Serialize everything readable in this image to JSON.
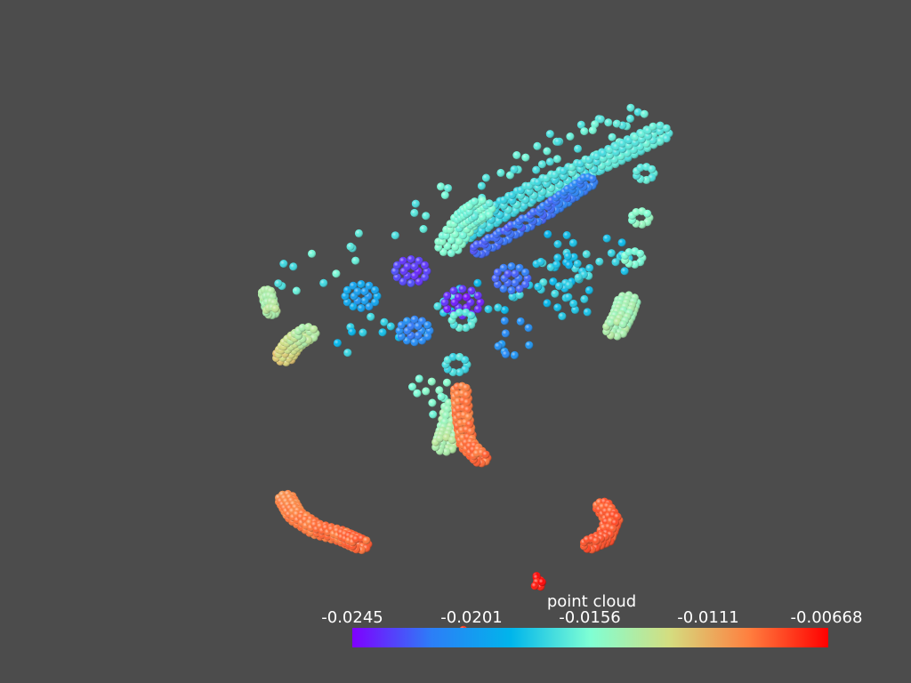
{
  "background_color": "#4c4c4c",
  "scalar_bar": {
    "title": "point cloud",
    "tick_labels": [
      "-0.0245",
      "-0.0201",
      "-0.0156",
      "-0.0111",
      "-0.00668"
    ],
    "colormap": "rainbow",
    "colors": [
      "#7f00ff",
      "#2c7ef7",
      "#00b5eb",
      "#7fffd4",
      "#d4dd80",
      "#ff7f3f",
      "#ff0000"
    ],
    "range": [
      -0.0245,
      -0.00668
    ]
  }
}
